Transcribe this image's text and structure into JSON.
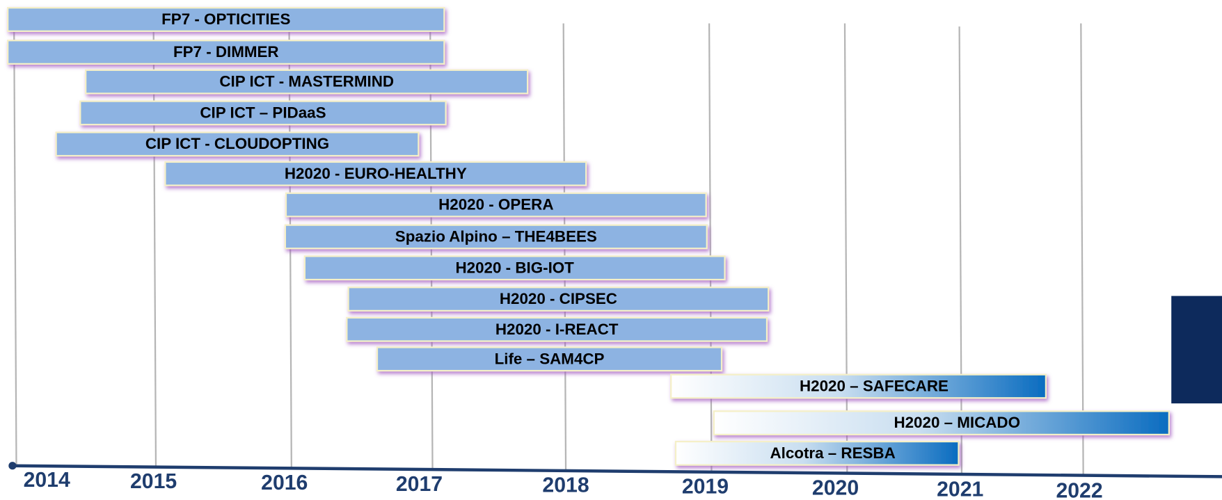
{
  "projects": [
    {
      "label": "FP7 - OPTICITIES"
    },
    {
      "label": "FP7 - DIMMER"
    },
    {
      "label": "CIP ICT - MASTERMIND"
    },
    {
      "label": "CIP ICT – PIDaaS"
    },
    {
      "label": "CIP ICT - CLOUDOPTING"
    },
    {
      "label": "H2020  -  EURO-HEALTHY"
    },
    {
      "label": "H2020  - OPERA"
    },
    {
      "label": "Spazio Alpino – THE4BEES"
    },
    {
      "label": "H2020  - BIG-IOT"
    },
    {
      "label": "H2020  - CIPSEC"
    },
    {
      "label": "H2020  - I-REACT"
    },
    {
      "label": "Life – SAM4CP"
    },
    {
      "label": "H2020 – SAFECARE"
    },
    {
      "label": "H2020 – MICADO"
    },
    {
      "label": "Alcotra – RESBA"
    }
  ],
  "years": [
    "2014",
    "2015",
    "2016",
    "2017",
    "2018",
    "2019",
    "2020",
    "2021",
    "2022"
  ]
}
